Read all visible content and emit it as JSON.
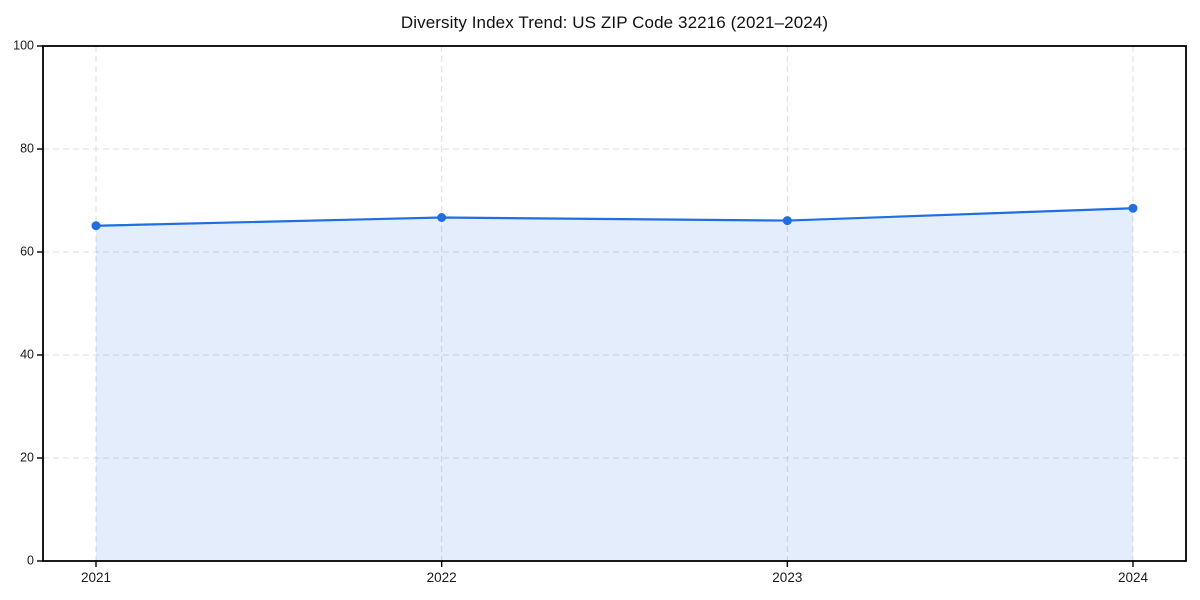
{
  "figure": {
    "title": "Diversity Index Trend: US ZIP Code 32216 (2021–2024)"
  },
  "chart_data": {
    "type": "line",
    "title": "Diversity Index Trend: US ZIP Code 32216 (2021–2024)",
    "categories": [
      "2021",
      "2022",
      "2023",
      "2024"
    ],
    "series": [
      {
        "name": "Diversity Index",
        "values": [
          65.1,
          66.7,
          66.1,
          68.5
        ]
      }
    ],
    "xlabel": "",
    "ylabel": "",
    "ylim": [
      0,
      100
    ],
    "yticks": [
      0,
      20,
      40,
      60,
      80,
      100
    ],
    "grid": "dashed",
    "legend": "none",
    "area_fill": true,
    "marker": "circle",
    "colors": {
      "line": "#1f6fe0",
      "marker": "#1f6fe0",
      "fill": "rgba(31, 111, 224, 0.12)",
      "grid": "#dedede",
      "spine": "#000000",
      "tick": "#000000",
      "tick_label": "#1a1a1a",
      "background": "#ffffff"
    }
  }
}
